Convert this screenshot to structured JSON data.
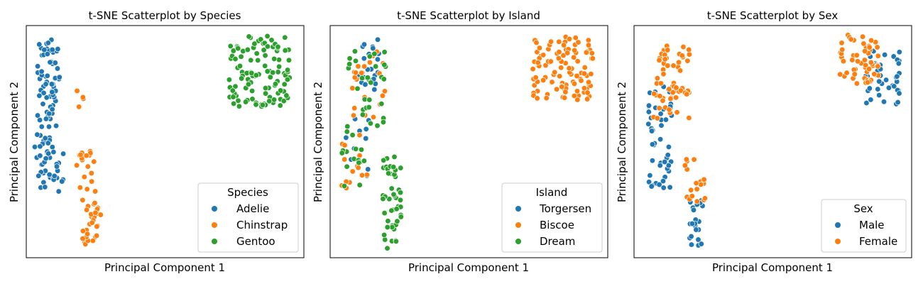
{
  "colors": {
    "blue": "#1f77b4",
    "orange": "#ff7f0e",
    "green": "#2ca02c"
  },
  "chart_data": [
    {
      "type": "scatter",
      "title": "t-SNE Scatterplot by Species",
      "xlabel": "Principal Component 1",
      "ylabel": "Principal Component 2",
      "xlim": [
        0,
        100
      ],
      "ylim": [
        0,
        100
      ],
      "ticks_visible": false,
      "legend": {
        "title": "Species",
        "placement": "lower-right"
      },
      "series": [
        {
          "name": "Adelie",
          "color": "#1f77b4",
          "clusters": [
            {
              "x": [
                4,
                12
              ],
              "y": [
                62,
                94
              ],
              "n": 55
            },
            {
              "x": [
                3,
                11
              ],
              "y": [
                40,
                64
              ],
              "n": 26
            },
            {
              "x": [
                4,
                14
              ],
              "y": [
                28,
                46
              ],
              "n": 27
            }
          ]
        },
        {
          "name": "Chinstrap",
          "color": "#ff7f0e",
          "clusters": [
            {
              "x": [
                18,
                25
              ],
              "y": [
                28,
                46
              ],
              "n": 18
            },
            {
              "x": [
                20,
                27
              ],
              "y": [
                5,
                25
              ],
              "n": 30
            },
            {
              "x": [
                18,
                21
              ],
              "y": [
                65,
                72
              ],
              "n": 4
            }
          ]
        },
        {
          "name": "Gentoo",
          "color": "#2ca02c",
          "clusters": [
            {
              "x": [
                73,
                95
              ],
              "y": [
                65,
                96
              ],
              "n": 110
            }
          ]
        }
      ]
    },
    {
      "type": "scatter",
      "title": "t-SNE Scatterplot by Island",
      "xlabel": "Principal Component 1",
      "ylabel": "Principal Component 2",
      "xlim": [
        0,
        100
      ],
      "ylim": [
        0,
        100
      ],
      "ticks_visible": false,
      "legend": {
        "title": "Island",
        "placement": "lower-right"
      },
      "series": [
        {
          "name": "Torgersen",
          "color": "#1f77b4",
          "clusters": [
            {
              "x": [
                10,
                18
              ],
              "y": [
                72,
                94
              ],
              "n": 22
            },
            {
              "x": [
                4,
                14
              ],
              "y": [
                35,
                60
              ],
              "n": 10
            }
          ]
        },
        {
          "name": "Biscoe",
          "color": "#ff7f0e",
          "clusters": [
            {
              "x": [
                73,
                95
              ],
              "y": [
                68,
                96
              ],
              "n": 105
            },
            {
              "x": [
                6,
                20
              ],
              "y": [
                60,
                90
              ],
              "n": 22
            },
            {
              "x": [
                4,
                14
              ],
              "y": [
                28,
                55
              ],
              "n": 14
            }
          ]
        },
        {
          "name": "Dream",
          "color": "#2ca02c",
          "clusters": [
            {
              "x": [
                6,
                20
              ],
              "y": [
                55,
                90
              ],
              "n": 30
            },
            {
              "x": [
                4,
                14
              ],
              "y": [
                30,
                55
              ],
              "n": 15
            },
            {
              "x": [
                19,
                26
              ],
              "y": [
                4,
                45
              ],
              "n": 48
            }
          ]
        }
      ]
    },
    {
      "type": "scatter",
      "title": "t-SNE Scatterplot by Sex",
      "xlabel": "Principal Component 1",
      "ylabel": "Principal Component 2",
      "xlim": [
        0,
        100
      ],
      "ylim": [
        0,
        100
      ],
      "ticks_visible": false,
      "legend": {
        "title": "Sex",
        "placement": "lower-right"
      },
      "series": [
        {
          "name": "Male",
          "color": "#1f77b4",
          "clusters": [
            {
              "x": [
                83,
                96
              ],
              "y": [
                65,
                90
              ],
              "n": 40
            },
            {
              "x": [
                5,
                14
              ],
              "y": [
                30,
                75
              ],
              "n": 50
            },
            {
              "x": [
                20,
                25
              ],
              "y": [
                5,
                25
              ],
              "n": 22
            }
          ]
        },
        {
          "name": "Female",
          "color": "#ff7f0e",
          "clusters": [
            {
              "x": [
                73,
                88
              ],
              "y": [
                75,
                96
              ],
              "n": 60
            },
            {
              "x": [
                7,
                20
              ],
              "y": [
                60,
                94
              ],
              "n": 60
            },
            {
              "x": [
                18,
                26
              ],
              "y": [
                24,
                45
              ],
              "n": 18
            }
          ]
        }
      ]
    }
  ]
}
